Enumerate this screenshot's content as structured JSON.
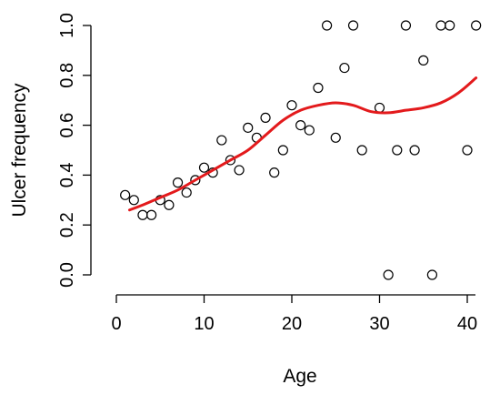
{
  "chart_data": {
    "type": "scatter",
    "title": "",
    "xlabel": "Age",
    "ylabel": "Ulcer frequency",
    "xlim": [
      0,
      42
    ],
    "ylim": [
      0,
      1.0
    ],
    "x_ticks": [
      0,
      10,
      20,
      30,
      40
    ],
    "x_tick_labels": [
      "0",
      "10",
      "20",
      "30",
      "40"
    ],
    "y_ticks": [
      0.0,
      0.2,
      0.4,
      0.6,
      0.8,
      1.0
    ],
    "y_tick_labels": [
      "0.0",
      "0.2",
      "0.4",
      "0.6",
      "0.8",
      "1.0"
    ],
    "grid": false,
    "box": "open-L (left and bottom axes only)",
    "points": [
      {
        "x": 1,
        "y": 0.32
      },
      {
        "x": 2,
        "y": 0.3
      },
      {
        "x": 3,
        "y": 0.24
      },
      {
        "x": 4,
        "y": 0.24
      },
      {
        "x": 5,
        "y": 0.3
      },
      {
        "x": 6,
        "y": 0.28
      },
      {
        "x": 7,
        "y": 0.37
      },
      {
        "x": 8,
        "y": 0.33
      },
      {
        "x": 9,
        "y": 0.38
      },
      {
        "x": 10,
        "y": 0.43
      },
      {
        "x": 11,
        "y": 0.41
      },
      {
        "x": 12,
        "y": 0.54
      },
      {
        "x": 13,
        "y": 0.46
      },
      {
        "x": 14,
        "y": 0.42
      },
      {
        "x": 15,
        "y": 0.59
      },
      {
        "x": 16,
        "y": 0.55
      },
      {
        "x": 17,
        "y": 0.63
      },
      {
        "x": 18,
        "y": 0.41
      },
      {
        "x": 19,
        "y": 0.5
      },
      {
        "x": 20,
        "y": 0.68
      },
      {
        "x": 21,
        "y": 0.6
      },
      {
        "x": 22,
        "y": 0.58
      },
      {
        "x": 23,
        "y": 0.75
      },
      {
        "x": 24,
        "y": 1.0
      },
      {
        "x": 25,
        "y": 0.55
      },
      {
        "x": 26,
        "y": 0.83
      },
      {
        "x": 27,
        "y": 1.0
      },
      {
        "x": 28,
        "y": 0.5
      },
      {
        "x": 30,
        "y": 0.67
      },
      {
        "x": 31,
        "y": 0.0
      },
      {
        "x": 32,
        "y": 0.5
      },
      {
        "x": 33,
        "y": 1.0
      },
      {
        "x": 34,
        "y": 0.5
      },
      {
        "x": 35,
        "y": 0.86
      },
      {
        "x": 36,
        "y": 0.0
      },
      {
        "x": 37,
        "y": 1.0
      },
      {
        "x": 38,
        "y": 1.0
      },
      {
        "x": 40,
        "y": 0.5
      },
      {
        "x": 41,
        "y": 1.0
      }
    ],
    "smooth_line": {
      "color": "#e31a1c",
      "x": [
        1.5,
        3,
        5,
        7,
        9,
        11,
        13,
        15,
        17,
        19,
        21,
        23,
        25,
        27,
        29,
        31,
        33,
        35,
        37,
        39,
        41
      ],
      "y": [
        0.26,
        0.28,
        0.31,
        0.34,
        0.38,
        0.42,
        0.46,
        0.5,
        0.56,
        0.62,
        0.66,
        0.68,
        0.69,
        0.68,
        0.655,
        0.65,
        0.66,
        0.67,
        0.69,
        0.73,
        0.79
      ]
    },
    "point_color": "#000000"
  }
}
